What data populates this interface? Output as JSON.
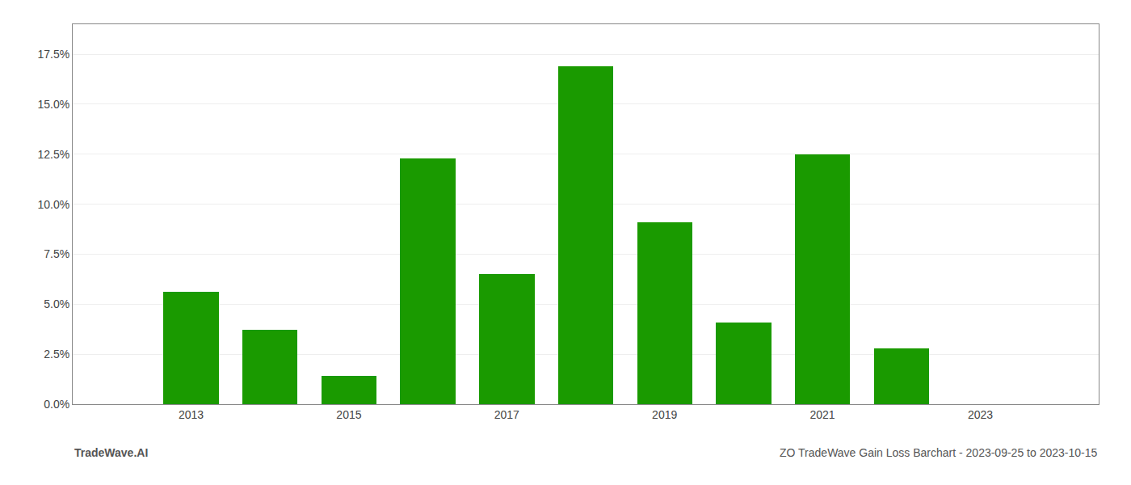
{
  "chart_data": {
    "type": "bar",
    "x": [
      2013,
      2014,
      2015,
      2016,
      2017,
      2018,
      2019,
      2020,
      2021,
      2022,
      2023
    ],
    "values": [
      0.056,
      0.037,
      0.014,
      0.123,
      0.065,
      0.169,
      0.091,
      0.041,
      0.125,
      0.028,
      0.0
    ],
    "color": "#1a9a00",
    "xlim": [
      2011.5,
      2024.5
    ],
    "xticks": [
      2013,
      2015,
      2017,
      2019,
      2021,
      2023
    ],
    "ylim": [
      0,
      0.19
    ],
    "yticks": [
      {
        "value": 0.0,
        "label": "0.0%"
      },
      {
        "value": 0.025,
        "label": "2.5%"
      },
      {
        "value": 0.05,
        "label": "5.0%"
      },
      {
        "value": 0.075,
        "label": "7.5%"
      },
      {
        "value": 0.1,
        "label": "10.0%"
      },
      {
        "value": 0.125,
        "label": "12.5%"
      },
      {
        "value": 0.15,
        "label": "15.0%"
      },
      {
        "value": 0.175,
        "label": "17.5%"
      }
    ],
    "grid": "y",
    "annotations": [
      "TradeWave.AI",
      "ZO TradeWave Gain Loss Barchart - 2023-09-25 to 2023-10-15"
    ]
  }
}
